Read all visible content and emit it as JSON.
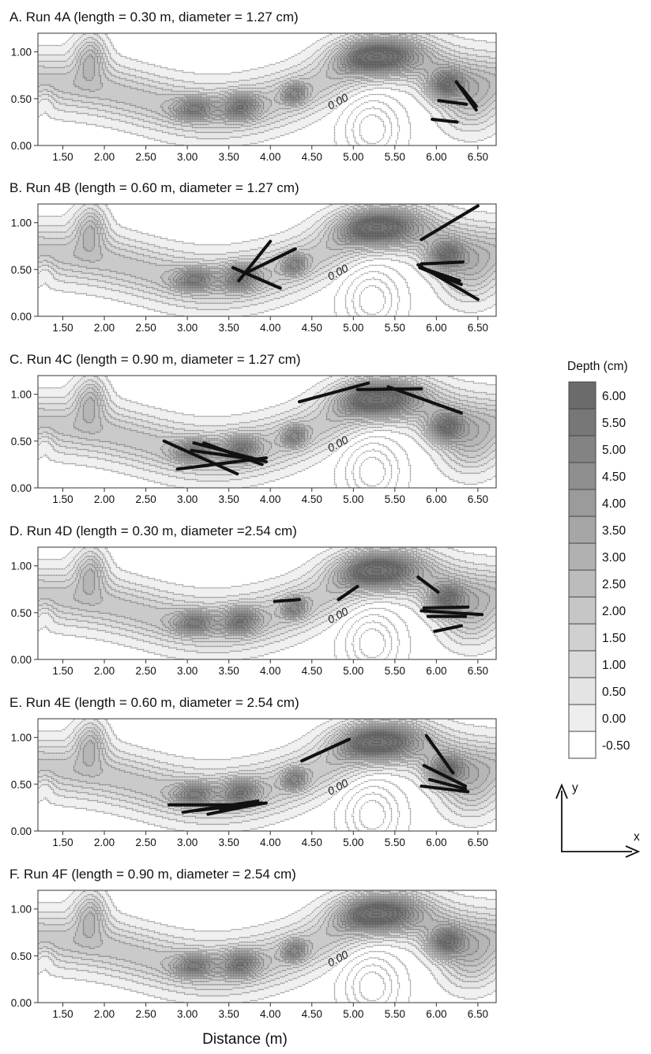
{
  "figure": {
    "xlabel": "Distance (m)",
    "zero_contour_label": "0.00",
    "legend": {
      "title": "Depth (cm)",
      "levels": [
        "6.00",
        "5.50",
        "5.00",
        "4.50",
        "4.00",
        "3.50",
        "3.00",
        "2.50",
        "2.00",
        "1.50",
        "1.00",
        "0.50",
        "0.00",
        "-0.50"
      ],
      "colors": [
        "#6b6b6b",
        "#777777",
        "#838383",
        "#8f8f8f",
        "#9b9b9b",
        "#a6a6a6",
        "#b1b1b1",
        "#bcbcbc",
        "#c6c6c6",
        "#d0d0d0",
        "#dadada",
        "#e4e4e4",
        "#eeeeee",
        "#ffffff"
      ]
    },
    "axis_arrows": {
      "x": "x",
      "y": "y"
    }
  },
  "chart_data": [
    {
      "type": "contour",
      "title": "A. Run 4A (length = 0.30 m, diameter = 1.27 cm)",
      "xticks": [
        "1.50",
        "2.00",
        "2.50",
        "3.00",
        "3.50",
        "4.00",
        "4.50",
        "5.00",
        "5.50",
        "6.00",
        "6.50"
      ],
      "yticks": [
        "0.00",
        "0.50",
        "1.00"
      ],
      "xlim": [
        1.2,
        6.72
      ],
      "ylim": [
        0.0,
        1.2
      ],
      "wood_segments": [
        [
          [
            6.24,
            0.68
          ],
          [
            6.48,
            0.38
          ]
        ],
        [
          [
            6.3,
            0.62
          ],
          [
            6.48,
            0.42
          ]
        ],
        [
          [
            6.03,
            0.48
          ],
          [
            6.36,
            0.44
          ]
        ],
        [
          [
            5.95,
            0.28
          ],
          [
            6.25,
            0.25
          ]
        ]
      ]
    },
    {
      "type": "contour",
      "title": "B. Run 4B (length = 0.60 m, diameter = 1.27 cm)",
      "xticks": [
        "1.50",
        "2.00",
        "2.50",
        "3.00",
        "3.50",
        "4.00",
        "4.50",
        "5.00",
        "5.50",
        "6.00",
        "6.50"
      ],
      "yticks": [
        "0.00",
        "0.50",
        "1.00"
      ],
      "xlim": [
        1.2,
        6.72
      ],
      "ylim": [
        0.0,
        1.2
      ],
      "wood_segments": [
        [
          [
            3.55,
            0.52
          ],
          [
            4.12,
            0.3
          ]
        ],
        [
          [
            3.62,
            0.38
          ],
          [
            4.0,
            0.8
          ]
        ],
        [
          [
            3.7,
            0.46
          ],
          [
            4.3,
            0.72
          ]
        ],
        [
          [
            5.82,
            0.82
          ],
          [
            6.5,
            1.18
          ]
        ],
        [
          [
            5.78,
            0.55
          ],
          [
            6.5,
            0.18
          ]
        ],
        [
          [
            5.8,
            0.52
          ],
          [
            6.3,
            0.34
          ]
        ],
        [
          [
            5.88,
            0.5
          ],
          [
            6.28,
            0.38
          ]
        ],
        [
          [
            5.82,
            0.56
          ],
          [
            6.32,
            0.58
          ]
        ]
      ]
    },
    {
      "type": "contour",
      "title": "C. Run 4C (length = 0.90 m, diameter = 1.27 cm)",
      "xticks": [
        "1.50",
        "2.00",
        "2.50",
        "3.00",
        "3.50",
        "4.00",
        "4.50",
        "5.00",
        "5.50",
        "6.00",
        "6.50"
      ],
      "yticks": [
        "0.00",
        "0.50",
        "1.00"
      ],
      "xlim": [
        1.2,
        6.72
      ],
      "ylim": [
        0.0,
        1.2
      ],
      "wood_segments": [
        [
          [
            2.72,
            0.5
          ],
          [
            3.6,
            0.15
          ]
        ],
        [
          [
            2.88,
            0.2
          ],
          [
            3.95,
            0.32
          ]
        ],
        [
          [
            3.08,
            0.48
          ],
          [
            3.95,
            0.28
          ]
        ],
        [
          [
            3.2,
            0.48
          ],
          [
            3.9,
            0.25
          ]
        ],
        [
          [
            3.05,
            0.4
          ],
          [
            3.85,
            0.3
          ]
        ],
        [
          [
            4.35,
            0.92
          ],
          [
            5.18,
            1.12
          ]
        ],
        [
          [
            5.05,
            1.05
          ],
          [
            5.82,
            1.06
          ]
        ],
        [
          [
            5.42,
            1.08
          ],
          [
            6.3,
            0.8
          ]
        ]
      ]
    },
    {
      "type": "contour",
      "title": "D. Run 4D (length = 0.30 m, diameter =2.54 cm)",
      "xticks": [
        "1.50",
        "2.00",
        "2.50",
        "3.00",
        "3.50",
        "4.00",
        "4.50",
        "5.00",
        "5.50",
        "6.00",
        "6.50"
      ],
      "yticks": [
        "0.00",
        "0.50",
        "1.00"
      ],
      "xlim": [
        1.2,
        6.72
      ],
      "ylim": [
        0.0,
        1.2
      ],
      "wood_segments": [
        [
          [
            4.05,
            0.62
          ],
          [
            4.35,
            0.64
          ]
        ],
        [
          [
            4.82,
            0.64
          ],
          [
            5.05,
            0.78
          ]
        ],
        [
          [
            5.78,
            0.88
          ],
          [
            6.02,
            0.72
          ]
        ],
        [
          [
            5.85,
            0.55
          ],
          [
            6.38,
            0.56
          ]
        ],
        [
          [
            5.82,
            0.52
          ],
          [
            6.55,
            0.48
          ]
        ],
        [
          [
            5.9,
            0.46
          ],
          [
            6.35,
            0.46
          ]
        ],
        [
          [
            5.98,
            0.3
          ],
          [
            6.3,
            0.36
          ]
        ]
      ]
    },
    {
      "type": "contour",
      "title": "E. Run 4E (length = 0.60 m, diameter = 2.54 cm)",
      "xticks": [
        "1.50",
        "2.00",
        "2.50",
        "3.00",
        "3.50",
        "4.00",
        "4.50",
        "5.00",
        "5.50",
        "6.00",
        "6.50"
      ],
      "yticks": [
        "0.00",
        "0.50",
        "1.00"
      ],
      "xlim": [
        1.2,
        6.72
      ],
      "ylim": [
        0.0,
        1.2
      ],
      "wood_segments": [
        [
          [
            2.78,
            0.28
          ],
          [
            3.55,
            0.28
          ]
        ],
        [
          [
            2.95,
            0.2
          ],
          [
            3.85,
            0.32
          ]
        ],
        [
          [
            3.12,
            0.22
          ],
          [
            3.9,
            0.3
          ]
        ],
        [
          [
            3.25,
            0.18
          ],
          [
            3.8,
            0.28
          ]
        ],
        [
          [
            3.4,
            0.22
          ],
          [
            3.95,
            0.3
          ]
        ],
        [
          [
            4.38,
            0.75
          ],
          [
            4.95,
            0.98
          ]
        ],
        [
          [
            5.88,
            1.02
          ],
          [
            6.2,
            0.62
          ]
        ],
        [
          [
            5.85,
            0.7
          ],
          [
            6.35,
            0.48
          ]
        ],
        [
          [
            5.92,
            0.55
          ],
          [
            6.35,
            0.45
          ]
        ],
        [
          [
            5.82,
            0.48
          ],
          [
            6.38,
            0.42
          ]
        ]
      ]
    },
    {
      "type": "contour",
      "title": "F. Run 4F (length = 0.90 m, diameter = 2.54 cm)",
      "xticks": [
        "1.50",
        "2.00",
        "2.50",
        "3.00",
        "3.50",
        "4.00",
        "4.50",
        "5.00",
        "5.50",
        "6.00",
        "6.50"
      ],
      "yticks": [
        "0.00",
        "0.50",
        "1.00"
      ],
      "xlim": [
        1.2,
        6.72
      ],
      "ylim": [
        0.0,
        1.2
      ],
      "wood_segments": []
    }
  ]
}
